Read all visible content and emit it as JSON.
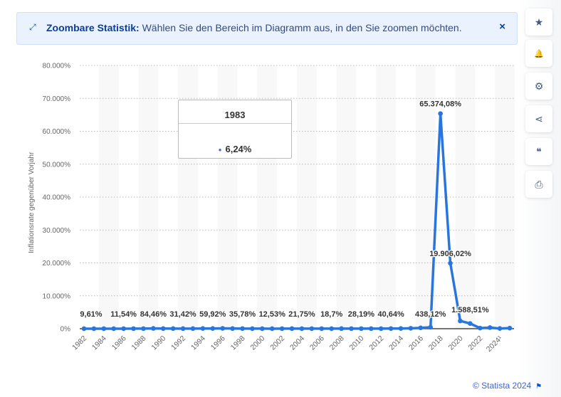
{
  "banner": {
    "icon": "expand-icon",
    "title": "Zoombare Statistik:",
    "text": "Wählen Sie den Bereich im Diagramm aus, in den Sie zoomen möchten.",
    "close": "×"
  },
  "sidebar": [
    {
      "icon": "star-icon",
      "glyph": "★"
    },
    {
      "icon": "bell-icon",
      "glyph": "🔔"
    },
    {
      "icon": "gear-icon",
      "glyph": "⚙"
    },
    {
      "icon": "share-icon",
      "glyph": "⋖"
    },
    {
      "icon": "quote-icon",
      "glyph": "❝"
    },
    {
      "icon": "print-icon",
      "glyph": "⎙"
    }
  ],
  "tooltip": {
    "year": "1983",
    "value": "6,24%"
  },
  "footer": {
    "text": "© Statista 2024"
  },
  "colors": {
    "line": "#2876dd",
    "accent": "#0a55c8"
  },
  "chart_data": {
    "type": "line",
    "ylabel": "Inflationsrate gegenüber Vorjahr",
    "ylim": [
      0,
      80000
    ],
    "yticks": [
      "0%",
      "10.000%",
      "20.000%",
      "30.000%",
      "40.000%",
      "50.000%",
      "60.000%",
      "70.000%",
      "80.000%"
    ],
    "grid": true,
    "x": [
      1982,
      1983,
      1984,
      1985,
      1986,
      1987,
      1988,
      1989,
      1990,
      1991,
      1992,
      1993,
      1994,
      1995,
      1996,
      1997,
      1998,
      1999,
      2000,
      2001,
      2002,
      2003,
      2004,
      2005,
      2006,
      2007,
      2008,
      2009,
      2010,
      2011,
      2012,
      2013,
      2014,
      2015,
      2016,
      2017,
      2018,
      2019,
      2020,
      2021,
      2022,
      2023,
      2024,
      2025
    ],
    "xticks": [
      "1982",
      "1984",
      "1986",
      "1988",
      "1990",
      "1992",
      "1994",
      "1996",
      "1998",
      "2000",
      "2002",
      "2004",
      "2006",
      "2008",
      "2010",
      "2012",
      "2014",
      "2016",
      "2018",
      "2020",
      "2022",
      "2024¹"
    ],
    "values": [
      9.61,
      6.24,
      12.2,
      11.4,
      11.54,
      28.1,
      29.5,
      84.46,
      40.7,
      34.2,
      31.42,
      38.1,
      60.8,
      59.92,
      99.9,
      50.0,
      35.78,
      23.6,
      16.2,
      12.53,
      22.4,
      31.1,
      21.75,
      16.0,
      13.7,
      18.7,
      31.4,
      27.1,
      28.19,
      26.1,
      21.1,
      40.64,
      62.2,
      121.7,
      254.9,
      438.12,
      65374.08,
      19906.02,
      2355.15,
      1588.51,
      186.5,
      337.5,
      60,
      180
    ],
    "data_labels": [
      {
        "year": 1982,
        "text": "9,61%"
      },
      {
        "year": 1986,
        "text": "11,54%"
      },
      {
        "year": 1989,
        "text": "84,46%"
      },
      {
        "year": 1992,
        "text": "31,42%"
      },
      {
        "year": 1995,
        "text": "59,92%"
      },
      {
        "year": 1998,
        "text": "35,78%"
      },
      {
        "year": 2001,
        "text": "12,53%"
      },
      {
        "year": 2004,
        "text": "21,75%"
      },
      {
        "year": 2007,
        "text": "18,7%"
      },
      {
        "year": 2010,
        "text": "28,19%"
      },
      {
        "year": 2013,
        "text": "40,64%"
      },
      {
        "year": 2017,
        "text": "438,12%"
      },
      {
        "year": 2018,
        "text": "65.374,08%"
      },
      {
        "year": 2019,
        "text": "19.906,02%"
      },
      {
        "year": 2021,
        "text": "1.588,51%"
      }
    ]
  }
}
